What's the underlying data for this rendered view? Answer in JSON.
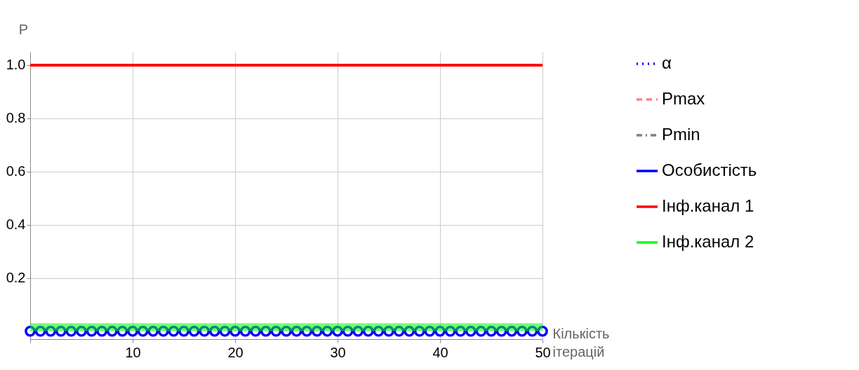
{
  "chart_data": {
    "type": "line",
    "xlabel": "Кількість ітерацій",
    "ylabel": "P",
    "x": [
      0,
      1,
      2,
      3,
      4,
      5,
      6,
      7,
      8,
      9,
      10,
      11,
      12,
      13,
      14,
      15,
      16,
      17,
      18,
      19,
      20,
      21,
      22,
      23,
      24,
      25,
      26,
      27,
      28,
      29,
      30,
      31,
      32,
      33,
      34,
      35,
      36,
      37,
      38,
      39,
      40,
      41,
      42,
      43,
      44,
      45,
      46,
      47,
      48,
      49,
      50
    ],
    "series": [
      {
        "name": "α",
        "color": "#0000ff",
        "line_style": "dotted",
        "marker": "none",
        "values": [
          null,
          null,
          null,
          null,
          null,
          null,
          null,
          null,
          null,
          null,
          null,
          null,
          null,
          null,
          null,
          null,
          null,
          null,
          null,
          null,
          null,
          null,
          null,
          null,
          null,
          null,
          null,
          null,
          null,
          null,
          null,
          null,
          null,
          null,
          null,
          null,
          null,
          null,
          null,
          null,
          null,
          null,
          null,
          null,
          null,
          null,
          null,
          null,
          null,
          null,
          null
        ]
      },
      {
        "name": "Pmax",
        "color": "#ff8080",
        "line_style": "dashed",
        "marker": "none",
        "values": [
          null,
          null,
          null,
          null,
          null,
          null,
          null,
          null,
          null,
          null,
          null,
          null,
          null,
          null,
          null,
          null,
          null,
          null,
          null,
          null,
          null,
          null,
          null,
          null,
          null,
          null,
          null,
          null,
          null,
          null,
          null,
          null,
          null,
          null,
          null,
          null,
          null,
          null,
          null,
          null,
          null,
          null,
          null,
          null,
          null,
          null,
          null,
          null,
          null,
          null,
          null
        ]
      },
      {
        "name": "Pmin",
        "color": "#808080",
        "line_style": "dashdot",
        "marker": "none",
        "values": [
          null,
          null,
          null,
          null,
          null,
          null,
          null,
          null,
          null,
          null,
          null,
          null,
          null,
          null,
          null,
          null,
          null,
          null,
          null,
          null,
          null,
          null,
          null,
          null,
          null,
          null,
          null,
          null,
          null,
          null,
          null,
          null,
          null,
          null,
          null,
          null,
          null,
          null,
          null,
          null,
          null,
          null,
          null,
          null,
          null,
          null,
          null,
          null,
          null,
          null,
          null
        ]
      },
      {
        "name": "Особистість",
        "color": "#0000ff",
        "line_style": "solid",
        "marker": "circle",
        "values": [
          0,
          0,
          0,
          0,
          0,
          0,
          0,
          0,
          0,
          0,
          0,
          0,
          0,
          0,
          0,
          0,
          0,
          0,
          0,
          0,
          0,
          0,
          0,
          0,
          0,
          0,
          0,
          0,
          0,
          0,
          0,
          0,
          0,
          0,
          0,
          0,
          0,
          0,
          0,
          0,
          0,
          0,
          0,
          0,
          0,
          0,
          0,
          0,
          0,
          0,
          0
        ]
      },
      {
        "name": "Інф.канал 1",
        "color": "#ff0000",
        "line_style": "solid",
        "marker": "none",
        "values": [
          1,
          1,
          1,
          1,
          1,
          1,
          1,
          1,
          1,
          1,
          1,
          1,
          1,
          1,
          1,
          1,
          1,
          1,
          1,
          1,
          1,
          1,
          1,
          1,
          1,
          1,
          1,
          1,
          1,
          1,
          1,
          1,
          1,
          1,
          1,
          1,
          1,
          1,
          1,
          1,
          1,
          1,
          1,
          1,
          1,
          1,
          1,
          1,
          1,
          1,
          1
        ]
      },
      {
        "name": "Інф.канал 2",
        "type": "area",
        "color": "#00ff00",
        "values": [
          0.03,
          0.03,
          0.03,
          0.03,
          0.03,
          0.03,
          0.03,
          0.03,
          0.03,
          0.03,
          0.03,
          0.03,
          0.03,
          0.03,
          0.03,
          0.03,
          0.03,
          0.03,
          0.03,
          0.03,
          0.03,
          0.03,
          0.03,
          0.03,
          0.03,
          0.03,
          0.03,
          0.03,
          0.03,
          0.03,
          0.03,
          0.03,
          0.03,
          0.03,
          0.03,
          0.03,
          0.03,
          0.03,
          0.03,
          0.03,
          0.03,
          0.03,
          0.03,
          0.03,
          0.03,
          0.03,
          0.03,
          0.03,
          0.03,
          0.03,
          0.03
        ]
      }
    ],
    "xlim": [
      0,
      50
    ],
    "xticks": [
      {
        "value": 0,
        "label": null
      },
      10,
      20,
      30,
      40,
      50
    ],
    "ylim": [
      -0.03,
      1.05
    ],
    "yticks": [
      {
        "value": 0,
        "label": null
      },
      0.2,
      0.4,
      0.6,
      0.8,
      {
        "value": 1,
        "label": "1.0"
      }
    ],
    "grid": true,
    "legend": "right"
  }
}
